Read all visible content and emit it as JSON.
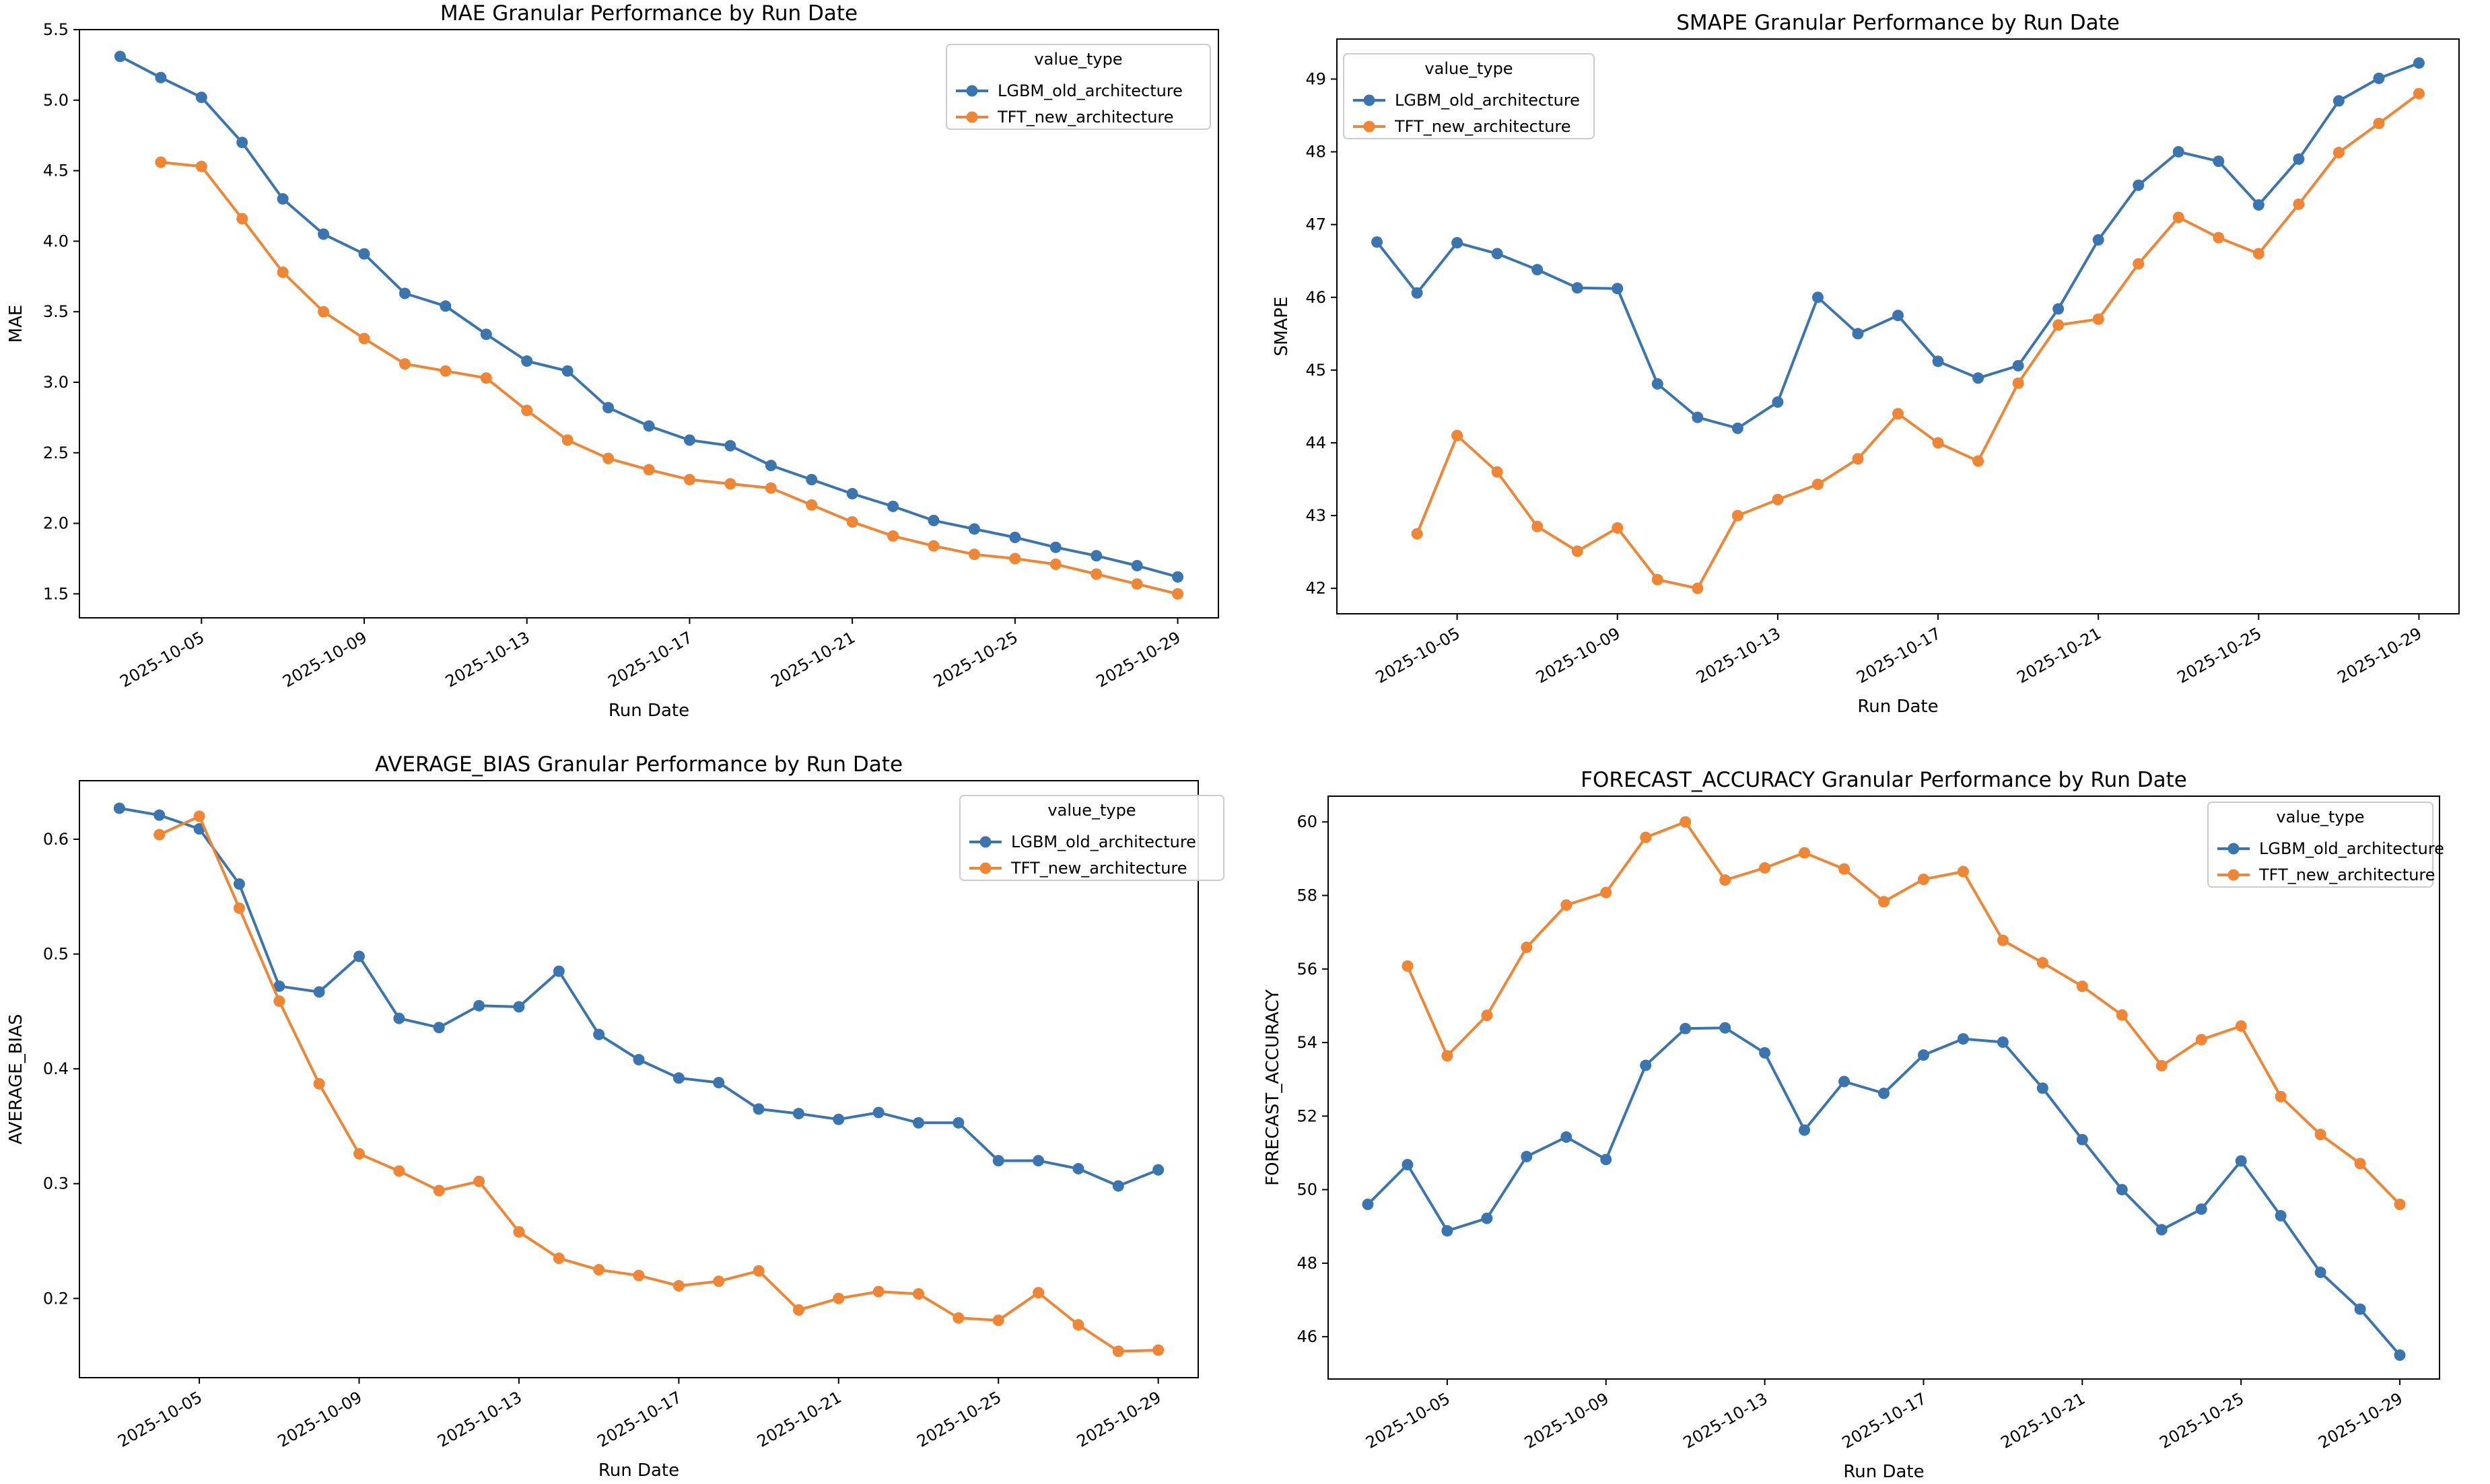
{
  "legend_title": "value_type",
  "series_names": [
    "LGBM_old_architecture",
    "TFT_new_architecture"
  ],
  "colors": {
    "LGBM_old_architecture": "#3b75af",
    "TFT_new_architecture": "#ef8636"
  },
  "chart_data": [
    {
      "type": "line",
      "title": "MAE Granular Performance by Run Date",
      "xlabel": "Run Date",
      "ylabel": "MAE",
      "xlim": [
        "2025-10-02",
        "2025-10-30"
      ],
      "ylim": [
        1.33,
        5.5
      ],
      "yticks": [
        1.5,
        2.0,
        2.5,
        3.0,
        3.5,
        4.0,
        4.5,
        5.0,
        5.5
      ],
      "ytick_labels": [
        "1.5",
        "2.0",
        "2.5",
        "3.0",
        "3.5",
        "4.0",
        "4.5",
        "5.0",
        "5.5"
      ],
      "xticks": [
        "2025-10-05",
        "2025-10-09",
        "2025-10-13",
        "2025-10-17",
        "2025-10-21",
        "2025-10-25",
        "2025-10-29"
      ],
      "legend_position": "upper right",
      "series": [
        {
          "name": "LGBM_old_architecture",
          "x": [
            "2025-10-03",
            "2025-10-04",
            "2025-10-05",
            "2025-10-06",
            "2025-10-07",
            "2025-10-08",
            "2025-10-09",
            "2025-10-10",
            "2025-10-11",
            "2025-10-12",
            "2025-10-13",
            "2025-10-14",
            "2025-10-15",
            "2025-10-16",
            "2025-10-17",
            "2025-10-18",
            "2025-10-19",
            "2025-10-20",
            "2025-10-21",
            "2025-10-22",
            "2025-10-23",
            "2025-10-24",
            "2025-10-25",
            "2025-10-26",
            "2025-10-27",
            "2025-10-28",
            "2025-10-29"
          ],
          "y": [
            5.31,
            5.16,
            5.02,
            4.7,
            4.3,
            4.05,
            3.91,
            3.63,
            3.54,
            3.34,
            3.15,
            3.08,
            2.82,
            2.69,
            2.59,
            2.55,
            2.41,
            2.31,
            2.21,
            2.12,
            2.02,
            1.96,
            1.9,
            1.83,
            1.77,
            1.7,
            1.62
          ]
        },
        {
          "name": "TFT_new_architecture",
          "x": [
            "2025-10-04",
            "2025-10-05",
            "2025-10-06",
            "2025-10-07",
            "2025-10-08",
            "2025-10-09",
            "2025-10-10",
            "2025-10-11",
            "2025-10-12",
            "2025-10-13",
            "2025-10-14",
            "2025-10-15",
            "2025-10-16",
            "2025-10-17",
            "2025-10-18",
            "2025-10-19",
            "2025-10-20",
            "2025-10-21",
            "2025-10-22",
            "2025-10-23",
            "2025-10-24",
            "2025-10-25",
            "2025-10-26",
            "2025-10-27",
            "2025-10-28",
            "2025-10-29"
          ],
          "y": [
            4.56,
            4.53,
            4.16,
            3.78,
            3.5,
            3.31,
            3.13,
            3.08,
            3.03,
            2.8,
            2.59,
            2.46,
            2.38,
            2.31,
            2.28,
            2.25,
            2.13,
            2.01,
            1.91,
            1.84,
            1.78,
            1.75,
            1.71,
            1.64,
            1.57,
            1.5
          ]
        }
      ]
    },
    {
      "type": "line",
      "title": "SMAPE Granular Performance by Run Date",
      "xlabel": "Run Date",
      "ylabel": "SMAPE",
      "xlim": [
        "2025-10-02",
        "2025-10-30"
      ],
      "ylim": [
        41.65,
        49.55
      ],
      "yticks": [
        42,
        43,
        44,
        45,
        46,
        47,
        48,
        49
      ],
      "ytick_labels": [
        "42",
        "43",
        "44",
        "45",
        "46",
        "47",
        "48",
        "49"
      ],
      "xticks": [
        "2025-10-05",
        "2025-10-09",
        "2025-10-13",
        "2025-10-17",
        "2025-10-21",
        "2025-10-25",
        "2025-10-29"
      ],
      "legend_position": "upper left",
      "series": [
        {
          "name": "LGBM_old_architecture",
          "x": [
            "2025-10-03",
            "2025-10-04",
            "2025-10-05",
            "2025-10-06",
            "2025-10-07",
            "2025-10-08",
            "2025-10-09",
            "2025-10-10",
            "2025-10-11",
            "2025-10-12",
            "2025-10-13",
            "2025-10-14",
            "2025-10-15",
            "2025-10-16",
            "2025-10-17",
            "2025-10-18",
            "2025-10-19",
            "2025-10-20",
            "2025-10-21",
            "2025-10-22",
            "2025-10-23",
            "2025-10-24",
            "2025-10-25",
            "2025-10-26",
            "2025-10-27",
            "2025-10-28",
            "2025-10-29"
          ],
          "y": [
            46.76,
            46.06,
            46.75,
            46.6,
            46.38,
            46.13,
            46.12,
            44.81,
            44.35,
            44.2,
            44.56,
            46.0,
            45.5,
            45.75,
            45.12,
            44.89,
            45.06,
            45.84,
            46.79,
            47.54,
            48.0,
            47.87,
            47.27,
            47.9,
            48.7,
            49.01,
            49.22
          ]
        },
        {
          "name": "TFT_new_architecture",
          "x": [
            "2025-10-04",
            "2025-10-05",
            "2025-10-06",
            "2025-10-07",
            "2025-10-08",
            "2025-10-09",
            "2025-10-10",
            "2025-10-11",
            "2025-10-12",
            "2025-10-13",
            "2025-10-14",
            "2025-10-15",
            "2025-10-16",
            "2025-10-17",
            "2025-10-18",
            "2025-10-19",
            "2025-10-20",
            "2025-10-21",
            "2025-10-22",
            "2025-10-23",
            "2025-10-24",
            "2025-10-25",
            "2025-10-26",
            "2025-10-27",
            "2025-10-28",
            "2025-10-29"
          ],
          "y": [
            42.75,
            44.1,
            43.6,
            42.85,
            42.51,
            42.83,
            42.12,
            42.0,
            43.0,
            43.22,
            43.43,
            43.78,
            44.4,
            44.0,
            43.75,
            44.82,
            45.62,
            45.7,
            46.46,
            47.1,
            46.82,
            46.6,
            47.28,
            47.99,
            48.39,
            48.8
          ]
        }
      ]
    },
    {
      "type": "line",
      "title": "AVERAGE_BIAS Granular Performance by Run Date",
      "xlabel": "Run Date",
      "ylabel": "AVERAGE_BIAS",
      "xlim": [
        "2025-10-02",
        "2025-10-30"
      ],
      "ylim": [
        0.131,
        0.651
      ],
      "yticks": [
        0.2,
        0.3,
        0.4,
        0.5,
        0.6
      ],
      "ytick_labels": [
        "0.2",
        "0.3",
        "0.4",
        "0.5",
        "0.6"
      ],
      "xticks": [
        "2025-10-05",
        "2025-10-09",
        "2025-10-13",
        "2025-10-17",
        "2025-10-21",
        "2025-10-25",
        "2025-10-29"
      ],
      "legend_position": "upper right",
      "series": [
        {
          "name": "LGBM_old_architecture",
          "x": [
            "2025-10-03",
            "2025-10-04",
            "2025-10-05",
            "2025-10-06",
            "2025-10-07",
            "2025-10-08",
            "2025-10-09",
            "2025-10-10",
            "2025-10-11",
            "2025-10-12",
            "2025-10-13",
            "2025-10-14",
            "2025-10-15",
            "2025-10-16",
            "2025-10-17",
            "2025-10-18",
            "2025-10-19",
            "2025-10-20",
            "2025-10-21",
            "2025-10-22",
            "2025-10-23",
            "2025-10-24",
            "2025-10-25",
            "2025-10-26",
            "2025-10-27",
            "2025-10-28",
            "2025-10-29"
          ],
          "y": [
            0.627,
            0.621,
            0.609,
            0.561,
            0.472,
            0.467,
            0.498,
            0.444,
            0.436,
            0.455,
            0.454,
            0.485,
            0.43,
            0.408,
            0.392,
            0.388,
            0.365,
            0.361,
            0.356,
            0.362,
            0.353,
            0.353,
            0.32,
            0.32,
            0.313,
            0.298,
            0.312
          ]
        },
        {
          "name": "TFT_new_architecture",
          "x": [
            "2025-10-04",
            "2025-10-05",
            "2025-10-06",
            "2025-10-07",
            "2025-10-08",
            "2025-10-09",
            "2025-10-10",
            "2025-10-11",
            "2025-10-12",
            "2025-10-13",
            "2025-10-14",
            "2025-10-15",
            "2025-10-16",
            "2025-10-17",
            "2025-10-18",
            "2025-10-19",
            "2025-10-20",
            "2025-10-21",
            "2025-10-22",
            "2025-10-23",
            "2025-10-24",
            "2025-10-25",
            "2025-10-26",
            "2025-10-27",
            "2025-10-28",
            "2025-10-29"
          ],
          "y": [
            0.604,
            0.62,
            0.54,
            0.459,
            0.387,
            0.326,
            0.311,
            0.294,
            0.302,
            0.258,
            0.235,
            0.225,
            0.22,
            0.211,
            0.215,
            0.224,
            0.19,
            0.2,
            0.206,
            0.204,
            0.183,
            0.181,
            0.205,
            0.177,
            0.154,
            0.155
          ]
        }
      ]
    },
    {
      "type": "line",
      "title": "FORECAST_ACCURACY Granular Performance by Run Date",
      "xlabel": "Run Date",
      "ylabel": "FORECAST_ACCURACY",
      "xlim": [
        "2025-10-02",
        "2025-10-30"
      ],
      "ylim": [
        44.85,
        60.7
      ],
      "yticks": [
        46,
        48,
        50,
        52,
        54,
        56,
        58,
        60
      ],
      "ytick_labels": [
        "46",
        "48",
        "50",
        "52",
        "54",
        "56",
        "58",
        "60"
      ],
      "xticks": [
        "2025-10-05",
        "2025-10-09",
        "2025-10-13",
        "2025-10-17",
        "2025-10-21",
        "2025-10-25",
        "2025-10-29"
      ],
      "legend_position": "upper right",
      "series": [
        {
          "name": "LGBM_old_architecture",
          "x": [
            "2025-10-03",
            "2025-10-04",
            "2025-10-05",
            "2025-10-06",
            "2025-10-07",
            "2025-10-08",
            "2025-10-09",
            "2025-10-10",
            "2025-10-11",
            "2025-10-12",
            "2025-10-13",
            "2025-10-14",
            "2025-10-15",
            "2025-10-16",
            "2025-10-17",
            "2025-10-18",
            "2025-10-19",
            "2025-10-20",
            "2025-10-21",
            "2025-10-22",
            "2025-10-23",
            "2025-10-24",
            "2025-10-25",
            "2025-10-26",
            "2025-10-27",
            "2025-10-28",
            "2025-10-29"
          ],
          "y": [
            49.6,
            50.68,
            48.88,
            49.22,
            50.9,
            51.43,
            50.82,
            53.38,
            54.38,
            54.4,
            53.72,
            51.62,
            52.94,
            52.62,
            53.66,
            54.1,
            54.01,
            52.76,
            51.36,
            50.0,
            48.91,
            49.47,
            50.78,
            49.29,
            47.75,
            46.75,
            45.5
          ]
        },
        {
          "name": "TFT_new_architecture",
          "x": [
            "2025-10-04",
            "2025-10-05",
            "2025-10-06",
            "2025-10-07",
            "2025-10-08",
            "2025-10-09",
            "2025-10-10",
            "2025-10-11",
            "2025-10-12",
            "2025-10-13",
            "2025-10-14",
            "2025-10-15",
            "2025-10-16",
            "2025-10-17",
            "2025-10-18",
            "2025-10-19",
            "2025-10-20",
            "2025-10-21",
            "2025-10-22",
            "2025-10-23",
            "2025-10-24",
            "2025-10-25",
            "2025-10-26",
            "2025-10-27",
            "2025-10-28",
            "2025-10-29"
          ],
          "y": [
            56.08,
            53.64,
            54.74,
            56.59,
            57.74,
            58.08,
            59.58,
            60.0,
            58.42,
            58.75,
            59.16,
            58.72,
            57.83,
            58.44,
            58.65,
            56.78,
            56.17,
            55.53,
            54.75,
            53.37,
            54.08,
            54.45,
            52.53,
            51.5,
            50.71,
            49.6
          ]
        }
      ]
    }
  ]
}
